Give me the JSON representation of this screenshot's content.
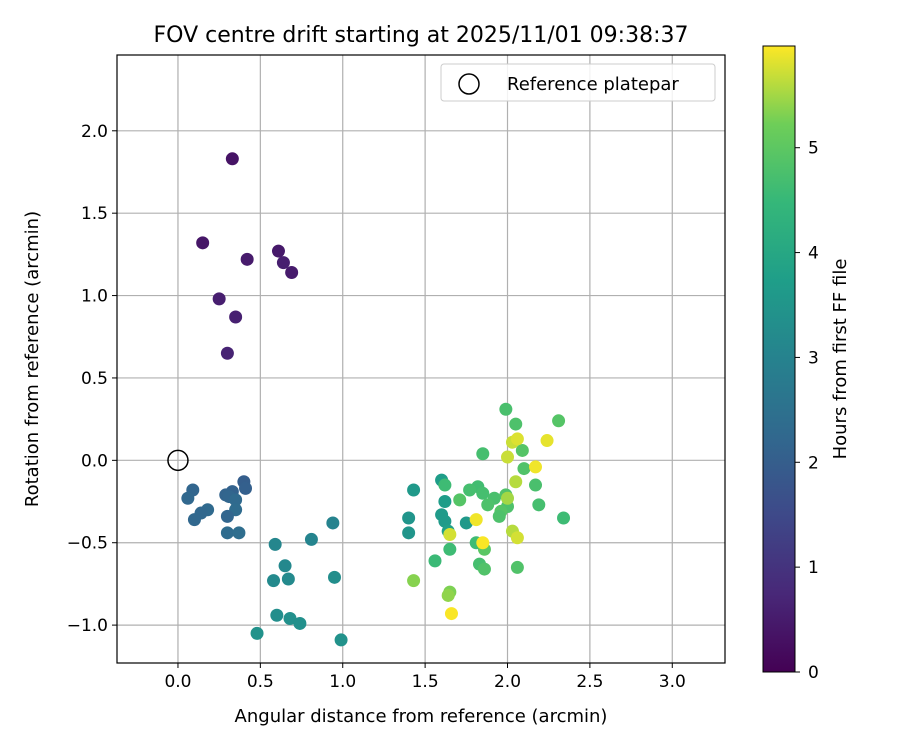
{
  "chart_data": {
    "type": "scatter",
    "title": "FOV centre drift starting at 2025/11/01 09:38:37",
    "xlabel": "Angular distance from reference (arcmin)",
    "ylabel": "Rotation from reference (arcmin)",
    "xlim": [
      -0.37,
      3.32
    ],
    "ylim": [
      -1.23,
      2.46
    ],
    "xticks": [
      0.0,
      0.5,
      1.0,
      1.5,
      2.0,
      2.5,
      3.0
    ],
    "xtick_labels": [
      "0.0",
      "0.5",
      "1.0",
      "1.5",
      "2.0",
      "2.5",
      "3.0"
    ],
    "yticks": [
      -1.0,
      -0.5,
      0.0,
      0.5,
      1.0,
      1.5,
      2.0
    ],
    "ytick_labels": [
      "−1.0",
      "−0.5",
      "0.0",
      "0.5",
      "1.0",
      "1.5",
      "2.0"
    ],
    "grid": true,
    "legend": {
      "position": "top-right",
      "entries": [
        "Reference platepar"
      ]
    },
    "reference_point": {
      "x": 0.0,
      "y": 0.0,
      "label": "Reference platepar"
    },
    "colorbar": {
      "label": "Hours from first FF file",
      "colormap": "viridis",
      "min": 0,
      "max": 5.97,
      "ticks": [
        0,
        1,
        2,
        3,
        4,
        5
      ],
      "tick_labels": [
        "0",
        "1",
        "2",
        "3",
        "4",
        "5"
      ]
    },
    "points": [
      {
        "x": 0.33,
        "y": 1.83,
        "h": 0.35
      },
      {
        "x": 0.15,
        "y": 1.32,
        "h": 0.4
      },
      {
        "x": 0.61,
        "y": 1.27,
        "h": 0.45
      },
      {
        "x": 0.42,
        "y": 1.22,
        "h": 0.5
      },
      {
        "x": 0.64,
        "y": 1.2,
        "h": 0.55
      },
      {
        "x": 0.69,
        "y": 1.14,
        "h": 0.5
      },
      {
        "x": 0.25,
        "y": 0.98,
        "h": 0.55
      },
      {
        "x": 0.35,
        "y": 0.87,
        "h": 0.6
      },
      {
        "x": 0.3,
        "y": 0.65,
        "h": 0.65
      },
      {
        "x": 0.4,
        "y": -0.13,
        "h": 2.0
      },
      {
        "x": 0.41,
        "y": -0.17,
        "h": 2.05
      },
      {
        "x": 0.09,
        "y": -0.18,
        "h": 2.2
      },
      {
        "x": 0.33,
        "y": -0.19,
        "h": 2.1
      },
      {
        "x": 0.29,
        "y": -0.21,
        "h": 2.15
      },
      {
        "x": 0.06,
        "y": -0.23,
        "h": 2.25
      },
      {
        "x": 0.31,
        "y": -0.22,
        "h": 2.2
      },
      {
        "x": 0.35,
        "y": -0.24,
        "h": 2.3
      },
      {
        "x": 0.18,
        "y": -0.3,
        "h": 2.3
      },
      {
        "x": 0.14,
        "y": -0.32,
        "h": 2.25
      },
      {
        "x": 0.35,
        "y": -0.3,
        "h": 2.35
      },
      {
        "x": 0.3,
        "y": -0.34,
        "h": 2.2
      },
      {
        "x": 0.1,
        "y": -0.36,
        "h": 2.25
      },
      {
        "x": 0.3,
        "y": -0.44,
        "h": 2.35
      },
      {
        "x": 0.37,
        "y": -0.44,
        "h": 2.4
      },
      {
        "x": 0.94,
        "y": -0.38,
        "h": 3.0
      },
      {
        "x": 0.81,
        "y": -0.48,
        "h": 3.05
      },
      {
        "x": 0.59,
        "y": -0.51,
        "h": 3.1
      },
      {
        "x": 0.65,
        "y": -0.64,
        "h": 3.15
      },
      {
        "x": 0.58,
        "y": -0.73,
        "h": 3.2
      },
      {
        "x": 0.67,
        "y": -0.72,
        "h": 3.2
      },
      {
        "x": 0.95,
        "y": -0.71,
        "h": 3.3
      },
      {
        "x": 0.6,
        "y": -0.94,
        "h": 3.3
      },
      {
        "x": 0.68,
        "y": -0.96,
        "h": 3.35
      },
      {
        "x": 0.74,
        "y": -0.99,
        "h": 3.35
      },
      {
        "x": 0.48,
        "y": -1.05,
        "h": 3.4
      },
      {
        "x": 0.99,
        "y": -1.09,
        "h": 3.4
      },
      {
        "x": 1.43,
        "y": -0.18,
        "h": 3.6
      },
      {
        "x": 1.4,
        "y": -0.35,
        "h": 3.5
      },
      {
        "x": 1.4,
        "y": -0.44,
        "h": 3.5
      },
      {
        "x": 1.6,
        "y": -0.12,
        "h": 3.7
      },
      {
        "x": 1.62,
        "y": -0.25,
        "h": 3.7
      },
      {
        "x": 1.6,
        "y": -0.33,
        "h": 3.65
      },
      {
        "x": 1.62,
        "y": -0.37,
        "h": 3.65
      },
      {
        "x": 1.75,
        "y": -0.38,
        "h": 3.6
      },
      {
        "x": 1.64,
        "y": -0.43,
        "h": 3.8
      },
      {
        "x": 1.62,
        "y": -0.15,
        "h": 4.6
      },
      {
        "x": 1.82,
        "y": -0.16,
        "h": 4.65
      },
      {
        "x": 1.77,
        "y": -0.18,
        "h": 4.7
      },
      {
        "x": 1.85,
        "y": -0.2,
        "h": 4.7
      },
      {
        "x": 1.92,
        "y": -0.23,
        "h": 4.75
      },
      {
        "x": 1.71,
        "y": -0.24,
        "h": 4.9
      },
      {
        "x": 1.88,
        "y": -0.27,
        "h": 4.8
      },
      {
        "x": 1.99,
        "y": -0.21,
        "h": 4.85
      },
      {
        "x": 2.0,
        "y": -0.28,
        "h": 4.8
      },
      {
        "x": 1.96,
        "y": -0.31,
        "h": 4.9
      },
      {
        "x": 1.95,
        "y": -0.34,
        "h": 4.8
      },
      {
        "x": 1.85,
        "y": 0.04,
        "h": 4.7
      },
      {
        "x": 1.99,
        "y": 0.31,
        "h": 4.75
      },
      {
        "x": 2.05,
        "y": 0.22,
        "h": 4.8
      },
      {
        "x": 2.31,
        "y": 0.24,
        "h": 4.9
      },
      {
        "x": 2.09,
        "y": 0.06,
        "h": 4.9
      },
      {
        "x": 2.1,
        "y": -0.05,
        "h": 4.85
      },
      {
        "x": 2.17,
        "y": -0.15,
        "h": 4.75
      },
      {
        "x": 2.19,
        "y": -0.27,
        "h": 4.7
      },
      {
        "x": 2.34,
        "y": -0.35,
        "h": 4.6
      },
      {
        "x": 1.65,
        "y": -0.54,
        "h": 4.6
      },
      {
        "x": 1.56,
        "y": -0.61,
        "h": 4.55
      },
      {
        "x": 1.81,
        "y": -0.5,
        "h": 4.6
      },
      {
        "x": 1.83,
        "y": -0.63,
        "h": 4.7
      },
      {
        "x": 1.86,
        "y": -0.66,
        "h": 4.85
      },
      {
        "x": 2.06,
        "y": -0.65,
        "h": 4.85
      },
      {
        "x": 1.86,
        "y": -0.54,
        "h": 4.95
      },
      {
        "x": 1.65,
        "y": -0.8,
        "h": 5.3
      },
      {
        "x": 1.64,
        "y": -0.82,
        "h": 5.4
      },
      {
        "x": 1.43,
        "y": -0.73,
        "h": 5.35
      },
      {
        "x": 2.0,
        "y": -0.23,
        "h": 5.5
      },
      {
        "x": 2.05,
        "y": -0.13,
        "h": 5.6
      },
      {
        "x": 2.03,
        "y": 0.11,
        "h": 5.7
      },
      {
        "x": 2.06,
        "y": 0.13,
        "h": 5.8
      },
      {
        "x": 2.24,
        "y": 0.12,
        "h": 5.85
      },
      {
        "x": 2.0,
        "y": 0.02,
        "h": 5.7
      },
      {
        "x": 2.17,
        "y": -0.04,
        "h": 5.9
      },
      {
        "x": 1.81,
        "y": -0.36,
        "h": 5.9
      },
      {
        "x": 1.65,
        "y": -0.45,
        "h": 5.75
      },
      {
        "x": 2.03,
        "y": -0.43,
        "h": 5.6
      },
      {
        "x": 2.06,
        "y": -0.47,
        "h": 5.75
      },
      {
        "x": 1.85,
        "y": -0.5,
        "h": 5.95
      },
      {
        "x": 1.66,
        "y": -0.93,
        "h": 5.95
      }
    ]
  }
}
